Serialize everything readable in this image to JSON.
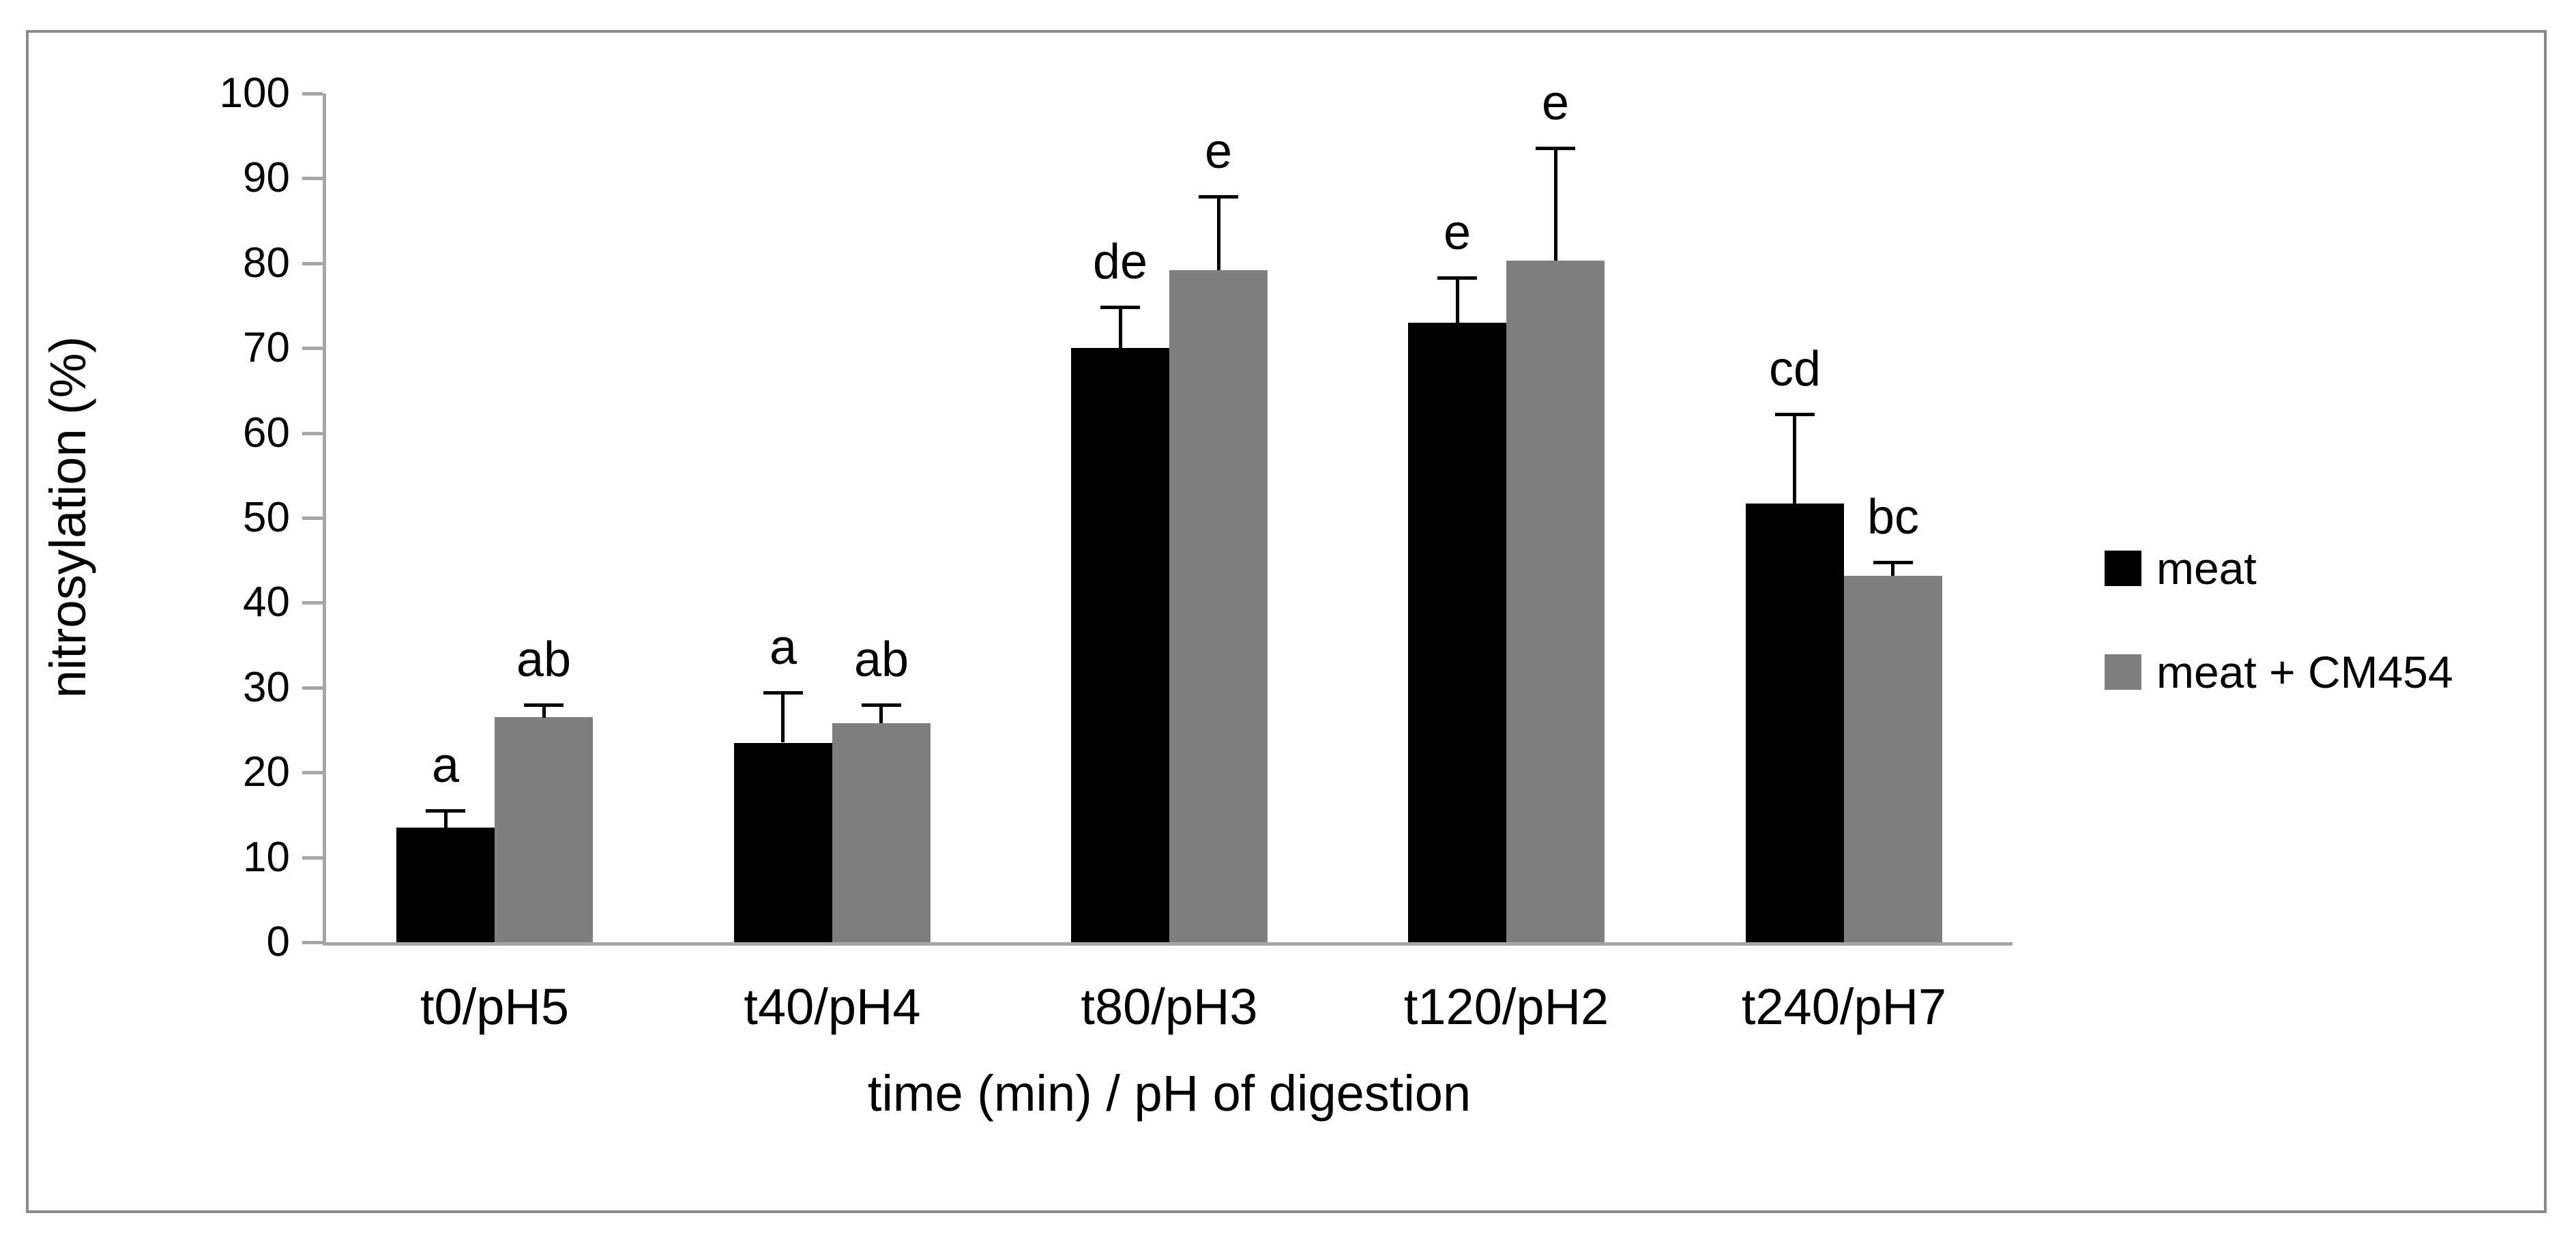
{
  "figure": {
    "background": "#ffffff",
    "border_color": "#8a8a8a"
  },
  "chart_data": {
    "type": "bar",
    "title": "",
    "categories": [
      "t0/pH5",
      "t40/pH4",
      "t80/pH3",
      "t120/pH2",
      "t240/pH7"
    ],
    "series": [
      {
        "name": "meat",
        "color": "#000000",
        "values": [
          13.5,
          23.5,
          70.0,
          73.0,
          51.7
        ],
        "errors_up": [
          2.0,
          5.9,
          4.8,
          5.3,
          10.5
        ],
        "sig_letters": [
          "a",
          "a",
          "de",
          "e",
          "cd"
        ]
      },
      {
        "name": "meat + CM454",
        "color": "#7f7f7f",
        "values": [
          26.5,
          25.8,
          79.2,
          80.3,
          43.2
        ],
        "errors_up": [
          1.5,
          2.2,
          8.7,
          13.3,
          1.6
        ],
        "sig_letters": [
          "ab",
          "ab",
          "e",
          "e",
          "bc"
        ]
      }
    ],
    "xlabel": "time (min) / pH of digestion",
    "ylabel": "nitrosylation (%)",
    "ylim": [
      0,
      100
    ],
    "yticks": [
      0,
      10,
      20,
      30,
      40,
      50,
      60,
      70,
      80,
      90,
      100
    ],
    "grid": false,
    "legend_position": "right",
    "axis_color": "#a6a6a6",
    "error_bar_color": "#000000"
  }
}
